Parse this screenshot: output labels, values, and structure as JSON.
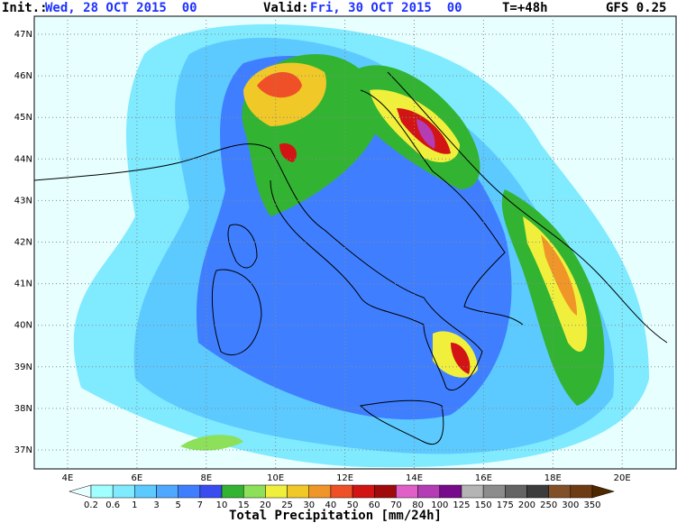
{
  "header": {
    "init_label": "Init.:",
    "init_value": "Wed, 28 OCT 2015  00",
    "valid_label": "Valid:",
    "valid_value": "Fri, 30 OCT 2015  00",
    "forecast_hour": "T=+48h",
    "model": "GFS 0.25"
  },
  "map": {
    "lat_labels": [
      "47N",
      "46N",
      "45N",
      "44N",
      "43N",
      "42N",
      "41N",
      "40N",
      "39N",
      "38N",
      "37N"
    ],
    "lon_labels": [
      "4E",
      "6E",
      "8E",
      "10E",
      "12E",
      "14E",
      "16E",
      "18E",
      "20E"
    ]
  },
  "colorbar": {
    "labels": [
      "0.2",
      "0.6",
      "1",
      "3",
      "5",
      "7",
      "10",
      "15",
      "20",
      "25",
      "30",
      "40",
      "50",
      "60",
      "70",
      "80",
      "100",
      "125",
      "150",
      "175",
      "200",
      "250",
      "300",
      "350"
    ],
    "colors": [
      "#e8ffff",
      "#a0ffff",
      "#80eaff",
      "#5ccaff",
      "#4fa8ff",
      "#3f7fff",
      "#3a4cf0",
      "#32b432",
      "#8ce05a",
      "#f0f03c",
      "#f0c828",
      "#f09628",
      "#f05028",
      "#d21414",
      "#a00a0a",
      "#e060c8",
      "#b43cb4",
      "#780a8c",
      "#b4b4b4",
      "#8c8c8c",
      "#646464",
      "#3c3c3c",
      "#825028",
      "#6e3c14",
      "#502800"
    ],
    "title": "Total Precipitation [mm/24h]"
  }
}
